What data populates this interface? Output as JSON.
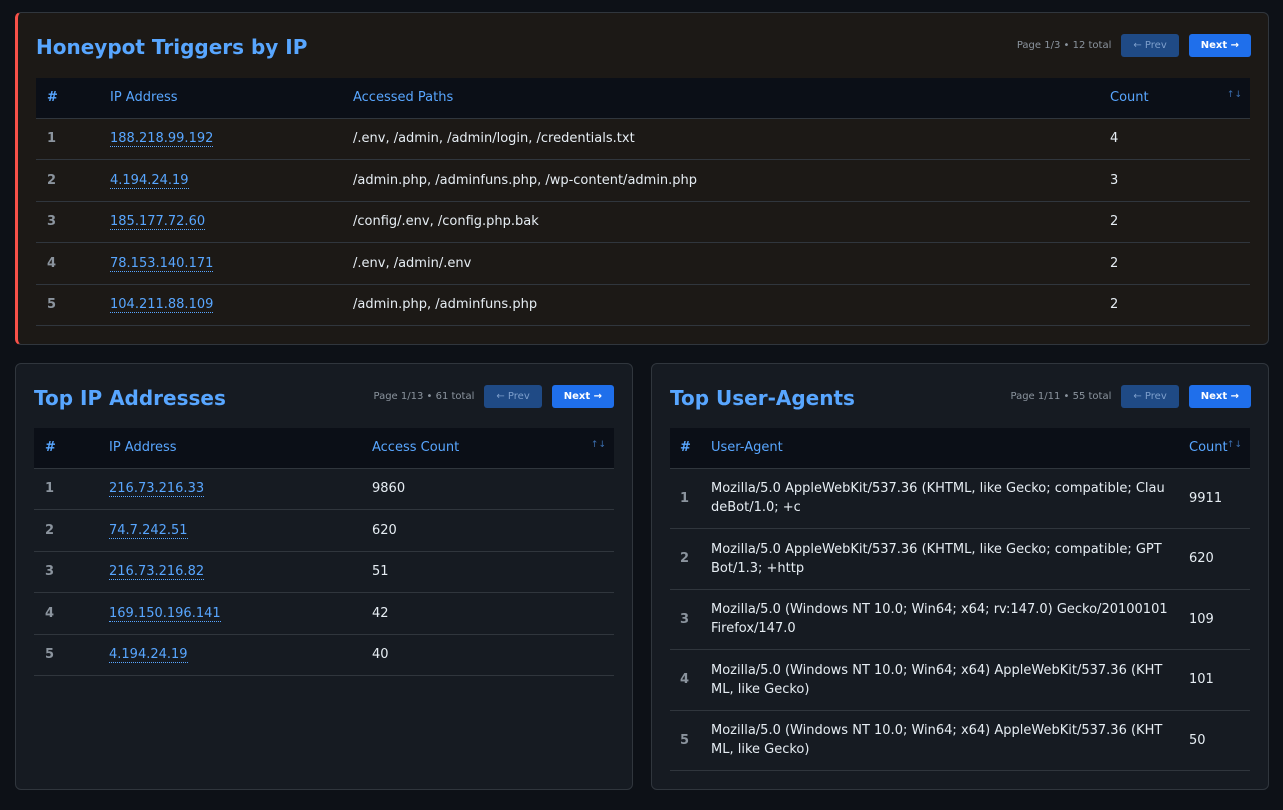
{
  "honeypot": {
    "title": "Honeypot Triggers by IP",
    "page_info": "Page 1/3",
    "total": "12 total",
    "prev": "← Prev",
    "next": "Next →",
    "columns": [
      "#",
      "IP Address",
      "Accessed Paths",
      "Count"
    ],
    "rows": [
      {
        "n": "1",
        "ip": "188.218.99.192",
        "paths": "/.env, /admin, /admin/login, /credentials.txt",
        "count": "4"
      },
      {
        "n": "2",
        "ip": "4.194.24.19",
        "paths": "/admin.php, /adminfuns.php, /wp-content/admin.php",
        "count": "3"
      },
      {
        "n": "3",
        "ip": "185.177.72.60",
        "paths": "/config/.env, /config.php.bak",
        "count": "2"
      },
      {
        "n": "4",
        "ip": "78.153.140.171",
        "paths": "/.env, /admin/.env",
        "count": "2"
      },
      {
        "n": "5",
        "ip": "104.211.88.109",
        "paths": "/admin.php, /adminfuns.php",
        "count": "2"
      }
    ]
  },
  "top_ips": {
    "title": "Top IP Addresses",
    "page_info": "Page 1/13",
    "total": "61 total",
    "prev": "← Prev",
    "next": "Next →",
    "columns": [
      "#",
      "IP Address",
      "Access Count"
    ],
    "rows": [
      {
        "n": "1",
        "ip": "216.73.216.33",
        "count": "9860"
      },
      {
        "n": "2",
        "ip": "74.7.242.51",
        "count": "620"
      },
      {
        "n": "3",
        "ip": "216.73.216.82",
        "count": "51"
      },
      {
        "n": "4",
        "ip": "169.150.196.141",
        "count": "42"
      },
      {
        "n": "5",
        "ip": "4.194.24.19",
        "count": "40"
      }
    ]
  },
  "top_agents": {
    "title": "Top User-Agents",
    "page_info": "Page 1/11",
    "total": "55 total",
    "prev": "← Prev",
    "next": "Next →",
    "columns": [
      "#",
      "User-Agent",
      "Count"
    ],
    "rows": [
      {
        "n": "1",
        "ua": "Mozilla/5.0 AppleWebKit/537.36 (KHTML, like Gecko; compatible; ClaudeBot/1.0; +c",
        "count": "9911"
      },
      {
        "n": "2",
        "ua": "Mozilla/5.0 AppleWebKit/537.36 (KHTML, like Gecko; compatible; GPTBot/1.3; +http",
        "count": "620"
      },
      {
        "n": "3",
        "ua": "Mozilla/5.0 (Windows NT 10.0; Win64; x64; rv:147.0) Gecko/20100101 Firefox/147.0",
        "count": "109"
      },
      {
        "n": "4",
        "ua": "Mozilla/5.0 (Windows NT 10.0; Win64; x64) AppleWebKit/537.36 (KHTML, like Gecko)",
        "count": "101"
      },
      {
        "n": "5",
        "ua": "Mozilla/5.0 (Windows NT 10.0; Win64; x64) AppleWebKit/537.36 (KHTML, like Gecko)",
        "count": "50"
      }
    ]
  },
  "sort_icon": "↑↓"
}
